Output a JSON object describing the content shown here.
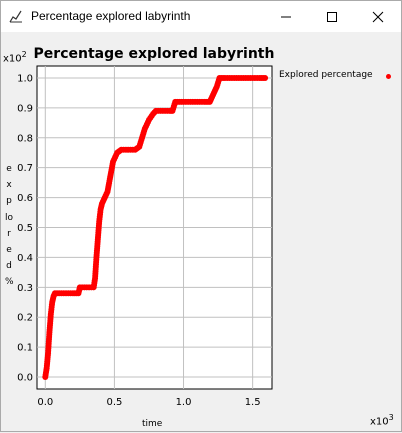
{
  "window": {
    "title": "Percentage explored labyrinth"
  },
  "icons": {
    "app": "chart-app-icon",
    "minimize": "minimize-icon",
    "maximize": "maximize-icon",
    "close": "close-icon"
  },
  "colors": {
    "series": "#ff0000",
    "grid": "#c0c0c0",
    "plot_bg": "#ffffff",
    "window_bg": "#f0f0f0"
  },
  "chart_data": {
    "type": "scatter",
    "title": "Percentage explored labyrinth",
    "xlabel": "time",
    "ylabel": "explored %",
    "x_multiplier_label": "x10",
    "x_multiplier_exp": "3",
    "y_multiplier_label": "x10",
    "y_multiplier_exp": "2",
    "xlim": [
      -0.06,
      1.64
    ],
    "ylim": [
      -0.04,
      1.04
    ],
    "x_ticks": [
      "0.0",
      "0.5",
      "1.0",
      "1.5"
    ],
    "x_tick_values": [
      0,
      0.5,
      1.0,
      1.5
    ],
    "y_ticks": [
      "0.0",
      "0.1",
      "0.2",
      "0.3",
      "0.4",
      "0.5",
      "0.6",
      "0.7",
      "0.8",
      "0.9",
      "1.0"
    ],
    "y_tick_values": [
      0,
      0.1,
      0.2,
      0.3,
      0.4,
      0.5,
      0.6,
      0.7,
      0.8,
      0.9,
      1.0
    ],
    "grid": true,
    "legend_position": "top-right",
    "series": [
      {
        "name": "Explored percentage",
        "color": "#ff0000",
        "points": [
          [
            0.0,
            0.0
          ],
          [
            0.01,
            0.03
          ],
          [
            0.02,
            0.08
          ],
          [
            0.03,
            0.15
          ],
          [
            0.04,
            0.21
          ],
          [
            0.05,
            0.25
          ],
          [
            0.06,
            0.27
          ],
          [
            0.07,
            0.28
          ],
          [
            0.1,
            0.28
          ],
          [
            0.15,
            0.28
          ],
          [
            0.2,
            0.28
          ],
          [
            0.24,
            0.28
          ],
          [
            0.25,
            0.3
          ],
          [
            0.3,
            0.3
          ],
          [
            0.35,
            0.3
          ],
          [
            0.36,
            0.33
          ],
          [
            0.37,
            0.4
          ],
          [
            0.38,
            0.46
          ],
          [
            0.39,
            0.52
          ],
          [
            0.4,
            0.56
          ],
          [
            0.41,
            0.58
          ],
          [
            0.43,
            0.6
          ],
          [
            0.45,
            0.62
          ],
          [
            0.47,
            0.67
          ],
          [
            0.49,
            0.72
          ],
          [
            0.52,
            0.75
          ],
          [
            0.55,
            0.76
          ],
          [
            0.6,
            0.76
          ],
          [
            0.65,
            0.76
          ],
          [
            0.68,
            0.77
          ],
          [
            0.7,
            0.8
          ],
          [
            0.72,
            0.83
          ],
          [
            0.75,
            0.86
          ],
          [
            0.78,
            0.88
          ],
          [
            0.8,
            0.89
          ],
          [
            0.85,
            0.89
          ],
          [
            0.9,
            0.89
          ],
          [
            0.92,
            0.89
          ],
          [
            0.94,
            0.92
          ],
          [
            1.0,
            0.92
          ],
          [
            1.05,
            0.92
          ],
          [
            1.1,
            0.92
          ],
          [
            1.15,
            0.92
          ],
          [
            1.19,
            0.92
          ],
          [
            1.2,
            0.93
          ],
          [
            1.22,
            0.95
          ],
          [
            1.24,
            0.97
          ],
          [
            1.26,
            1.0
          ],
          [
            1.3,
            1.0
          ],
          [
            1.35,
            1.0
          ],
          [
            1.4,
            1.0
          ],
          [
            1.45,
            1.0
          ],
          [
            1.5,
            1.0
          ],
          [
            1.55,
            1.0
          ],
          [
            1.59,
            1.0
          ]
        ]
      }
    ]
  }
}
